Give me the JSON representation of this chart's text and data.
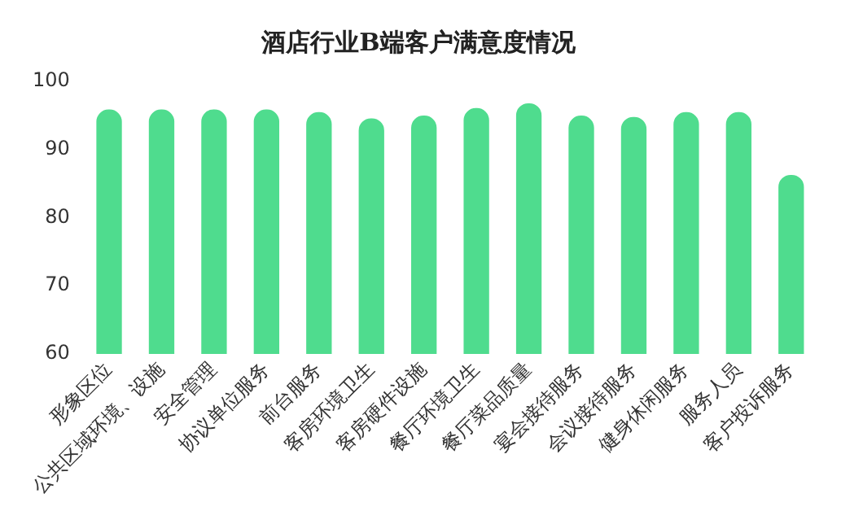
{
  "chart_data": {
    "type": "bar",
    "title": "酒店行业B端客户满意度情况",
    "categories": [
      "形象区位",
      "公共区域环境、设施",
      "安全管理",
      "协议单位服务",
      "前台服务",
      "客房环境卫生",
      "客房硬件设施",
      "餐厅环境卫生",
      "餐厅菜品质量",
      "宴会接待服务",
      "会议接待服务",
      "健身休闲服务",
      "服务人员",
      "客户投诉服务"
    ],
    "values": [
      95.8,
      95.8,
      95.8,
      95.8,
      95.4,
      94.5,
      94.9,
      96.0,
      96.7,
      94.9,
      94.7,
      95.4,
      95.4,
      86.2
    ],
    "color": "#4fdc8e",
    "ylim": [
      60,
      100
    ],
    "yticks": [
      60,
      70,
      80,
      90,
      100
    ],
    "grid": false,
    "legend": false
  }
}
